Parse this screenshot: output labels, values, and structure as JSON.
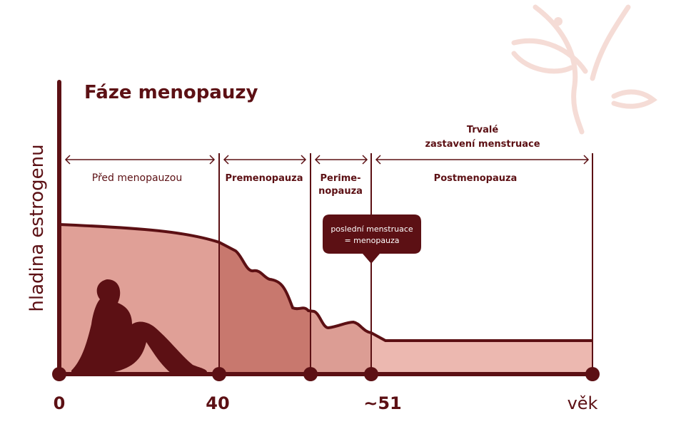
{
  "title": "Fáze menopauzy",
  "y_axis_label": "hladina estrogenu",
  "x_axis_labels": [
    "0",
    "40",
    "~51",
    "věk"
  ],
  "phases": [
    {
      "lines": [
        "Před menopauzou"
      ]
    },
    {
      "lines": [
        "Premenopauza"
      ]
    },
    {
      "lines": [
        "Perime-",
        "nopauza"
      ]
    },
    {
      "lines": [
        "Postmenopauza"
      ]
    }
  ],
  "postmenopause_heading": [
    "Trvalé",
    "zastavení menstruace"
  ],
  "callout": [
    "poslední menstruace",
    "= menopauza"
  ]
}
